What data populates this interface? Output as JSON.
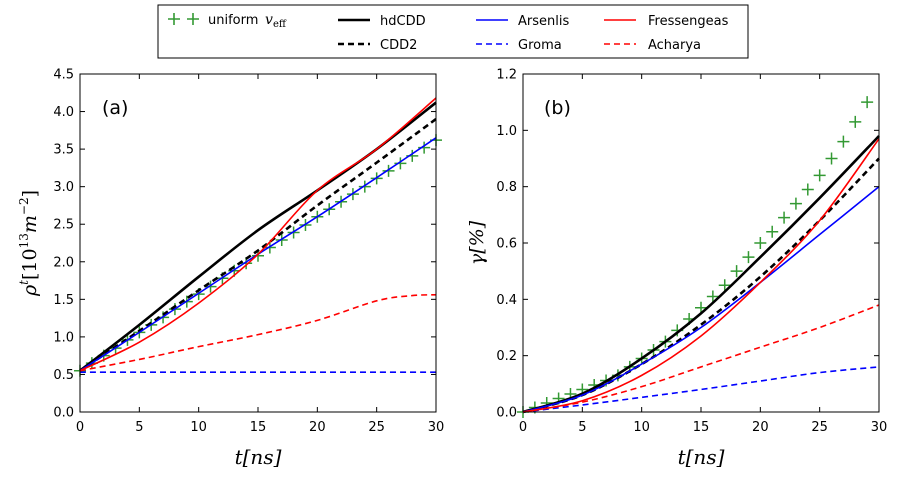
{
  "legend": {
    "entries": [
      {
        "label": "uniform",
        "label_math": "v",
        "label_sub": "eff",
        "color": "#339933",
        "style": "plus"
      },
      {
        "label": "hdCDD",
        "color": "#000000",
        "style": "solid"
      },
      {
        "label": "CDD2",
        "color": "#000000",
        "style": "dashed"
      },
      {
        "label": "Arsenlis",
        "color": "#0000ff",
        "style": "solid"
      },
      {
        "label": "Groma",
        "color": "#0000ff",
        "style": "dashed"
      },
      {
        "label": "Fressengeas",
        "color": "#ff0000",
        "style": "solid"
      },
      {
        "label": "Acharya",
        "color": "#ff0000",
        "style": "dashed"
      }
    ]
  },
  "chart_data": [
    {
      "type": "line",
      "panel_label": "(a)",
      "xlabel": "t[ns]",
      "ylabel": "ρt[10^13 m^-2]",
      "ylabel_parts": {
        "sym": "ρ",
        "sup": "t",
        "open": "[10",
        "exp1": "13",
        "unit": "m",
        "exp2": "−2",
        "close": "]"
      },
      "xlim": [
        0,
        30
      ],
      "ylim": [
        0,
        4.5
      ],
      "xticks": [
        "0",
        "5",
        "10",
        "15",
        "20",
        "25",
        "30"
      ],
      "yticks": [
        "0.0",
        "0.5",
        "1.0",
        "1.5",
        "2.0",
        "2.5",
        "3.0",
        "3.5",
        "4.0",
        "4.5"
      ],
      "series": [
        {
          "name": "uniform v_eff",
          "color": "#339933",
          "style": "plus",
          "x": [
            0,
            1,
            2,
            3,
            4,
            5,
            6,
            7,
            8,
            9,
            10,
            11,
            12,
            13,
            14,
            15,
            16,
            17,
            18,
            19,
            20,
            21,
            22,
            23,
            24,
            25,
            26,
            27,
            28,
            29,
            30
          ],
          "y": [
            0.55,
            0.65,
            0.75,
            0.85,
            0.96,
            1.06,
            1.16,
            1.26,
            1.37,
            1.47,
            1.57,
            1.67,
            1.78,
            1.88,
            1.98,
            2.08,
            2.19,
            2.29,
            2.39,
            2.49,
            2.6,
            2.7,
            2.8,
            2.9,
            3.0,
            3.11,
            3.21,
            3.31,
            3.41,
            3.52,
            3.62
          ]
        },
        {
          "name": "hdCDD",
          "color": "#000000",
          "style": "solid",
          "x": [
            0,
            5,
            10,
            15,
            20,
            25,
            30
          ],
          "y": [
            0.55,
            1.16,
            1.8,
            2.42,
            2.95,
            3.5,
            4.12
          ]
        },
        {
          "name": "CDD2",
          "color": "#000000",
          "style": "dashed",
          "x": [
            0,
            5,
            10,
            15,
            20,
            25,
            30
          ],
          "y": [
            0.55,
            1.08,
            1.62,
            2.15,
            2.75,
            3.32,
            3.9
          ]
        },
        {
          "name": "Arsenlis",
          "color": "#0000ff",
          "style": "solid",
          "x": [
            0,
            5,
            10,
            15,
            20,
            25,
            30
          ],
          "y": [
            0.55,
            1.06,
            1.58,
            2.1,
            2.6,
            3.12,
            3.65
          ]
        },
        {
          "name": "Groma",
          "color": "#0000ff",
          "style": "dashed",
          "x": [
            0,
            5,
            10,
            15,
            20,
            25,
            30
          ],
          "y": [
            0.53,
            0.53,
            0.53,
            0.53,
            0.53,
            0.53,
            0.53
          ]
        },
        {
          "name": "Fressengeas",
          "color": "#ff0000",
          "style": "solid",
          "x": [
            0,
            5,
            10,
            15,
            20,
            25,
            30
          ],
          "y": [
            0.55,
            0.93,
            1.45,
            2.1,
            2.95,
            3.5,
            4.18
          ]
        },
        {
          "name": "Acharya",
          "color": "#ff0000",
          "style": "dashed",
          "x": [
            0,
            5,
            10,
            15,
            20,
            25,
            28,
            30
          ],
          "y": [
            0.55,
            0.7,
            0.87,
            1.03,
            1.22,
            1.48,
            1.55,
            1.56
          ]
        }
      ]
    },
    {
      "type": "line",
      "panel_label": "(b)",
      "xlabel": "t[ns]",
      "ylabel": "γ[%]",
      "xlim": [
        0,
        30
      ],
      "ylim": [
        0,
        1.2
      ],
      "xticks": [
        "0",
        "5",
        "10",
        "15",
        "20",
        "25",
        "30"
      ],
      "yticks": [
        "0.0",
        "0.2",
        "0.4",
        "0.6",
        "0.8",
        "1.0",
        "1.2"
      ],
      "series": [
        {
          "name": "uniform v_eff",
          "color": "#339933",
          "style": "plus",
          "x": [
            0,
            1,
            2,
            3,
            4,
            5,
            6,
            7,
            8,
            9,
            10,
            11,
            12,
            13,
            14,
            15,
            16,
            17,
            18,
            19,
            20,
            21,
            22,
            23,
            24,
            25,
            26,
            27,
            28,
            29
          ],
          "y": [
            0.0,
            0.016,
            0.032,
            0.048,
            0.064,
            0.08,
            0.096,
            0.112,
            0.13,
            0.16,
            0.19,
            0.22,
            0.25,
            0.29,
            0.33,
            0.37,
            0.41,
            0.45,
            0.5,
            0.55,
            0.6,
            0.64,
            0.69,
            0.74,
            0.79,
            0.84,
            0.9,
            0.96,
            1.03,
            1.1
          ]
        },
        {
          "name": "hdCDD",
          "color": "#000000",
          "style": "solid",
          "x": [
            0,
            5,
            10,
            15,
            20,
            25,
            30
          ],
          "y": [
            0.0,
            0.065,
            0.19,
            0.35,
            0.55,
            0.76,
            0.98
          ]
        },
        {
          "name": "CDD2",
          "color": "#000000",
          "style": "dashed",
          "x": [
            0,
            5,
            10,
            15,
            20,
            25,
            30
          ],
          "y": [
            0.0,
            0.06,
            0.17,
            0.31,
            0.48,
            0.68,
            0.9
          ]
        },
        {
          "name": "Arsenlis",
          "color": "#0000ff",
          "style": "solid",
          "x": [
            0,
            5,
            10,
            15,
            20,
            25,
            30
          ],
          "y": [
            0.0,
            0.06,
            0.17,
            0.3,
            0.46,
            0.63,
            0.8
          ]
        },
        {
          "name": "Groma",
          "color": "#0000ff",
          "style": "dashed",
          "x": [
            0,
            5,
            10,
            15,
            20,
            25,
            30
          ],
          "y": [
            0.0,
            0.025,
            0.052,
            0.08,
            0.11,
            0.14,
            0.16
          ]
        },
        {
          "name": "Fressengeas",
          "color": "#ff0000",
          "style": "solid",
          "x": [
            0,
            5,
            10,
            15,
            20,
            25,
            30
          ],
          "y": [
            0.0,
            0.04,
            0.13,
            0.27,
            0.46,
            0.68,
            0.97
          ]
        },
        {
          "name": "Acharya",
          "color": "#ff0000",
          "style": "dashed",
          "x": [
            0,
            5,
            10,
            15,
            20,
            25,
            30
          ],
          "y": [
            0.0,
            0.035,
            0.09,
            0.16,
            0.23,
            0.3,
            0.38
          ]
        }
      ]
    }
  ]
}
